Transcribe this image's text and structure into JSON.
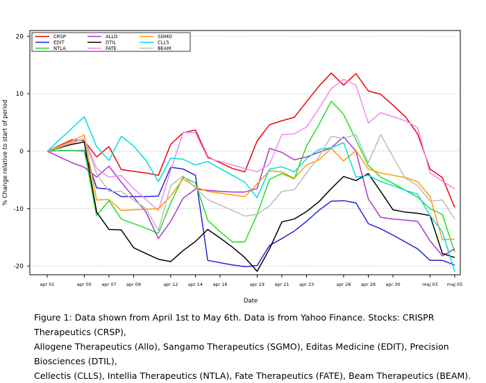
{
  "chart_data": {
    "type": "line",
    "xlabel": "Date",
    "ylabel": "% Change relative to start of period",
    "ylim": [
      -21.5,
      21
    ],
    "yticks": [
      -20,
      -10,
      0,
      10,
      20
    ],
    "grid": true,
    "legend_position": "top-left",
    "x_labels": [
      {
        "i": 0,
        "label": "apr 01"
      },
      {
        "i": 3,
        "label": "apr 05"
      },
      {
        "i": 5,
        "label": "apr 07"
      },
      {
        "i": 7,
        "label": "apr 09"
      },
      {
        "i": 10,
        "label": "apr 12"
      },
      {
        "i": 12,
        "label": "apr 14"
      },
      {
        "i": 14,
        "label": "apr 16"
      },
      {
        "i": 17,
        "label": "apr 19"
      },
      {
        "i": 19,
        "label": "apr 21"
      },
      {
        "i": 21,
        "label": "apr 23"
      },
      {
        "i": 24,
        "label": "apr 26"
      },
      {
        "i": 26,
        "label": "apr 28"
      },
      {
        "i": 28,
        "label": "apr 30"
      },
      {
        "i": 31,
        "label": "maj 03"
      },
      {
        "i": 33,
        "label": "maj 05"
      }
    ],
    "series": [
      {
        "name": "CRSP",
        "color": "#ee0000",
        "values": [
          0,
          1.0,
          2.0,
          1.8,
          -1.0,
          0.8,
          -3.2,
          -3.5,
          -3.8,
          -4.2,
          1.2,
          3.2,
          3.7,
          -1.0,
          -2.0,
          -3.0,
          -3.6,
          1.8,
          4.6,
          5.3,
          5.9,
          8.6,
          11.3,
          13.6,
          11.5,
          13.5,
          10.5,
          9.9,
          8.0,
          6.0,
          3.0,
          -3.1,
          -4.6,
          -9.8
        ]
      },
      {
        "name": "EDIT",
        "color": "#2222dd",
        "values": [
          0,
          0.1,
          0.1,
          0.1,
          -6.4,
          -6.6,
          -7.9,
          -7.9,
          -7.9,
          -7.8,
          -2.8,
          -3.1,
          -4.2,
          -19.0,
          -19.4,
          -19.8,
          -20.1,
          -19.9,
          -16.4,
          -15.2,
          -13.9,
          -12.2,
          -10.3,
          -8.7,
          -8.6,
          -9.0,
          -12.6,
          -13.5,
          -14.6,
          -15.8,
          -17.0,
          -19.0,
          -19.0,
          -19.8
        ]
      },
      {
        "name": "NTLA",
        "color": "#22dd22",
        "values": [
          0,
          0.1,
          0.1,
          0.0,
          -11.2,
          -8.6,
          -11.8,
          -12.6,
          -13.4,
          -14.3,
          -9.0,
          -4.5,
          -5.5,
          -12.0,
          -14.0,
          -15.8,
          -15.8,
          -11.0,
          -4.9,
          -3.9,
          -4.8,
          0.9,
          4.6,
          8.7,
          6.4,
          2.0,
          -2.5,
          -4.5,
          -5.6,
          -6.8,
          -8.0,
          -10.0,
          -11.0,
          -17.6
        ]
      },
      {
        "name": "ALLO",
        "color": "#aa33cc",
        "values": [
          0,
          -1.0,
          -2.0,
          -2.8,
          -4.5,
          -2.6,
          -5.4,
          -8.0,
          -10.6,
          -15.2,
          -12.2,
          -8.2,
          -6.6,
          -6.8,
          -7.0,
          -7.1,
          -7.1,
          -6.5,
          0.5,
          -0.2,
          -1.5,
          -1.0,
          -0.2,
          0.6,
          2.5,
          0.0,
          -8.3,
          -11.5,
          -11.8,
          -12.0,
          -12.2,
          -15.6,
          -18.2,
          -17.0
        ]
      },
      {
        "name": "DTIL",
        "color": "#000000",
        "values": [
          0,
          0.6,
          1.2,
          1.6,
          -10.6,
          -13.6,
          -13.7,
          -16.8,
          -17.8,
          -18.8,
          -19.2,
          -17.3,
          -15.7,
          -13.6,
          -15.1,
          -16.7,
          -18.5,
          -20.9,
          -17.0,
          -12.3,
          -11.8,
          -10.5,
          -8.8,
          -6.5,
          -4.4,
          -5.1,
          -3.9,
          -7.0,
          -10.2,
          -10.6,
          -10.8,
          -11.2,
          -17.8,
          -18.5
        ]
      },
      {
        "name": "FATE",
        "color": "#ee88ee",
        "values": [
          0,
          0.8,
          1.6,
          2.2,
          -3.0,
          -4.5,
          -4.2,
          -6.5,
          -8.4,
          -10.3,
          -3.3,
          3.3,
          3.2,
          -1.2,
          -1.8,
          -2.4,
          -3.0,
          -3.6,
          -2.3,
          2.9,
          3.0,
          4.2,
          7.4,
          10.9,
          12.5,
          11.5,
          4.9,
          6.7,
          6.0,
          5.3,
          4.1,
          -3.8,
          -5.2,
          -6.6
        ]
      },
      {
        "name": "SGMO",
        "color": "#ff9900",
        "values": [
          0,
          0.9,
          1.8,
          2.8,
          -8.5,
          -8.4,
          -10.3,
          -10.2,
          -10.1,
          -10.0,
          -7.8,
          -4.8,
          -6.2,
          -7.0,
          -7.3,
          -7.6,
          -7.9,
          -5.7,
          -3.4,
          -3.6,
          -4.7,
          -2.4,
          -1.5,
          0.5,
          -1.7,
          0.1,
          -3.1,
          -3.8,
          -4.2,
          -4.6,
          -5.3,
          -7.9,
          -15.4,
          -15.3
        ]
      },
      {
        "name": "CLLS",
        "color": "#00dddd",
        "values": [
          0,
          2.0,
          4.0,
          6.0,
          0.8,
          -1.6,
          2.6,
          0.9,
          -1.6,
          -5.3,
          -1.2,
          -1.4,
          -2.4,
          -1.8,
          -3.0,
          -4.2,
          -5.4,
          -8.1,
          -3.1,
          -2.7,
          -3.6,
          -1.3,
          0.3,
          0.6,
          1.5,
          -4.5,
          -4.2,
          -5.3,
          -6.0,
          -6.8,
          -7.5,
          -11.2,
          -14.0,
          -21.0
        ]
      },
      {
        "name": "BEAM",
        "color": "#bbbbbb",
        "values": [
          0,
          0.7,
          1.4,
          2.1,
          -3.9,
          -7.0,
          -7.0,
          -8.5,
          -10.0,
          -13.8,
          -6.0,
          -4.3,
          -6.4,
          -8.4,
          -9.4,
          -10.3,
          -11.3,
          -11.0,
          -9.5,
          -7.0,
          -6.7,
          -3.8,
          -1.0,
          2.6,
          2.2,
          2.9,
          -2.0,
          2.9,
          -1.0,
          -4.7,
          -6.0,
          -8.7,
          -8.5,
          -11.8
        ]
      }
    ]
  },
  "caption": {
    "line1": "Figure 1: Data shown from April 1st to May 6th. Data is from Yahoo Finance. Stocks: CRISPR Therapeutics (CRSP),",
    "line2": "Allogene Therapeutics (Allo), Sangamo Therapeutics (SGMO), Editas Medicine (EDIT), Precision Biosciences (DTIL),",
    "line3": "Cellectis (CLLS), Intellia Therapeutics (NTLA), Fate Therapeutics (FATE), Beam Therapeutics (BEAM)."
  }
}
